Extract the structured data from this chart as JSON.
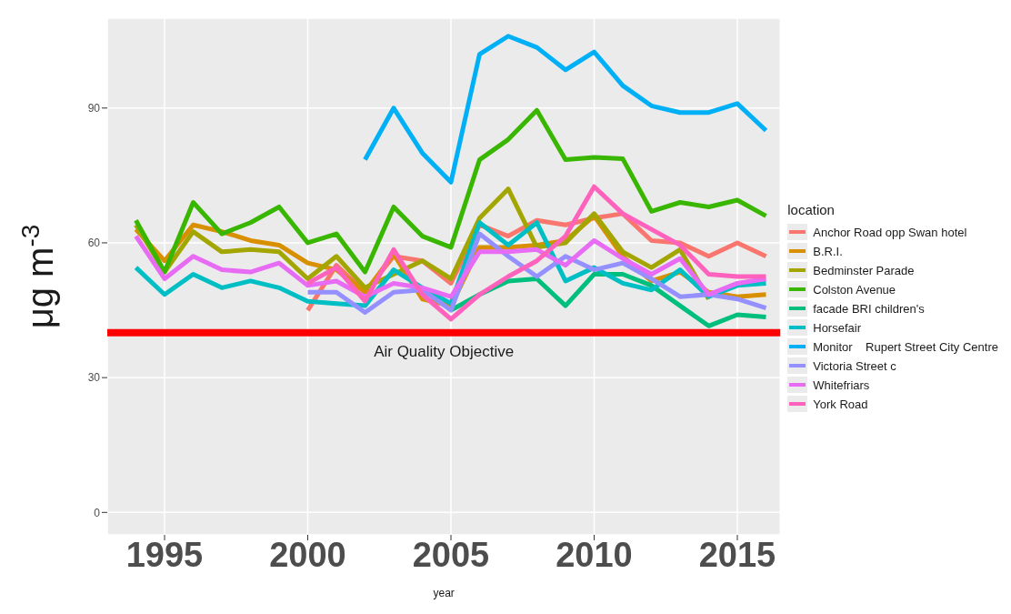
{
  "chart_data": {
    "type": "line",
    "xlabel": "year",
    "ylabel": "μg m$^{-3}$",
    "legend_title": "location",
    "x": [
      1994,
      1995,
      1996,
      1997,
      1998,
      1999,
      2000,
      2001,
      2002,
      2003,
      2004,
      2005,
      2006,
      2007,
      2008,
      2009,
      2010,
      2011,
      2012,
      2013,
      2014,
      2015,
      2016
    ],
    "series": [
      {
        "name": "Anchor Road opp Swan hotel",
        "color": "#f8766d",
        "values": [
          null,
          null,
          null,
          null,
          null,
          null,
          45,
          55,
          49,
          57,
          56,
          51,
          64,
          61.5,
          65,
          64,
          65.5,
          66.5,
          60.5,
          60,
          57,
          60,
          57
        ]
      },
      {
        "name": "B.R.I.",
        "color": "#d89000",
        "values": [
          63,
          56,
          64,
          62.5,
          60.5,
          59.5,
          55.5,
          54,
          49,
          57.5,
          47.5,
          46,
          59,
          59,
          59.5,
          60.5,
          66,
          57,
          51.5,
          53.5,
          49,
          48,
          48.5
        ]
      },
      {
        "name": "Bedminster Parade",
        "color": "#a3a500",
        "values": [
          64,
          53.5,
          62.5,
          58,
          58.5,
          58,
          52,
          57,
          50,
          53,
          56,
          52,
          65.5,
          72,
          59,
          60,
          66.5,
          58,
          54.5,
          58.5,
          47.5,
          null,
          null
        ]
      },
      {
        "name": "Colston Avenue",
        "color": "#39b600",
        "values": [
          65,
          53.5,
          69,
          62,
          64.5,
          68,
          60,
          62,
          53.5,
          68,
          61.5,
          59,
          78.5,
          83,
          89.5,
          78.5,
          79,
          78.7,
          67,
          69,
          68,
          69.5,
          66
        ]
      },
      {
        "name": "facade BRI children's",
        "color": "#00bf7d",
        "values": [
          null,
          null,
          null,
          null,
          null,
          null,
          null,
          null,
          null,
          null,
          null,
          45,
          48.5,
          51.5,
          52,
          46,
          53,
          53,
          50.5,
          46,
          41.5,
          44,
          43.5
        ]
      },
      {
        "name": "Horsefair",
        "color": "#00bfc4",
        "values": [
          54.5,
          48.5,
          53,
          50,
          51.5,
          50,
          47,
          46.5,
          46,
          54,
          50,
          46.5,
          64.5,
          59.5,
          64.5,
          51.5,
          54.5,
          51,
          49.5,
          54,
          48,
          50.5,
          51
        ]
      },
      {
        "name": "Monitor    Rupert Street City Centre",
        "color": "#00b0f6",
        "values": [
          null,
          null,
          null,
          null,
          null,
          null,
          null,
          null,
          78.5,
          90,
          80,
          73.5,
          102,
          106,
          103.5,
          98.5,
          102.5,
          95,
          90.5,
          89,
          89,
          91,
          85
        ]
      },
      {
        "name": "Victoria Street c",
        "color": "#9590ff",
        "values": [
          null,
          null,
          null,
          null,
          null,
          null,
          49,
          49,
          44.5,
          49,
          49.5,
          45,
          62,
          57,
          52.5,
          57,
          54,
          55.5,
          52,
          48,
          48.5,
          47.5,
          45.5
        ]
      },
      {
        "name": "Whitefriars",
        "color": "#e76bf3",
        "values": [
          61.5,
          52,
          57,
          54,
          53.5,
          55.5,
          50.5,
          51.5,
          48,
          51,
          50,
          48,
          58,
          58,
          58.5,
          55,
          60.5,
          56.5,
          53,
          56.5,
          48.5,
          51,
          52
        ]
      },
      {
        "name": "York Road",
        "color": "#ff62bc",
        "values": [
          null,
          null,
          null,
          null,
          null,
          null,
          51,
          54.5,
          47,
          58.5,
          48.5,
          43,
          48.5,
          52.5,
          56,
          61.5,
          72.5,
          66.5,
          63,
          59.5,
          53,
          52.5,
          52.5
        ]
      }
    ],
    "xlim": [
      1993,
      2016.5
    ],
    "xticks": [
      1995,
      2000,
      2005,
      2010,
      2015
    ],
    "ylim": [
      -5,
      110
    ],
    "yticks": [
      0,
      30,
      60,
      90
    ],
    "ref_lines": [
      {
        "axis": "y",
        "value": 40,
        "label": "Air Quality Objective",
        "color": "#ff0000"
      }
    ],
    "grid": true,
    "legend": "right",
    "line_style": "solid",
    "marker": "none"
  }
}
